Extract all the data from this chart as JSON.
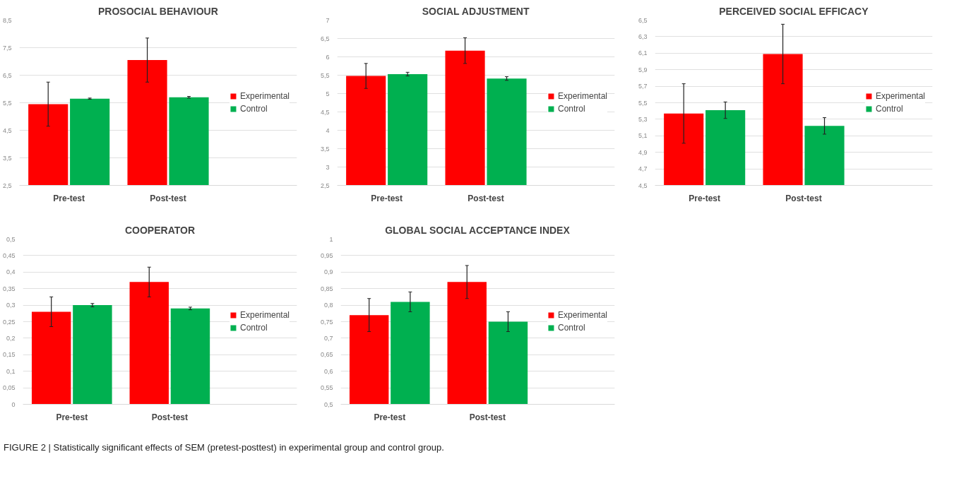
{
  "chart_data": [
    {
      "type": "bar",
      "title": "PROSOCIAL BEHAVIOUR",
      "categories": [
        "Pre-test",
        "Post-test"
      ],
      "series": [
        {
          "name": "Experimental",
          "color": "#ff0000",
          "values": [
            5.45,
            7.05
          ],
          "errors": [
            0.8,
            0.8
          ]
        },
        {
          "name": "Control",
          "color": "#00b050",
          "values": [
            5.65,
            5.7
          ],
          "errors": [
            0.02,
            0.03
          ]
        }
      ],
      "ylim": [
        2.5,
        8.5
      ],
      "yticks": [
        {
          "value": 2.5,
          "label": "2,5"
        },
        {
          "value": 3.5,
          "label": "3,5"
        },
        {
          "value": 4.5,
          "label": "4,5"
        },
        {
          "value": 5.5,
          "label": "5,5"
        },
        {
          "value": 6.5,
          "label": "6,5"
        },
        {
          "value": 7.5,
          "label": "7,5"
        },
        {
          "value": 8.5,
          "label": "8,5"
        }
      ],
      "grid": "y",
      "legend": "right"
    },
    {
      "type": "bar",
      "title": "SOCIAL ADJUSTMENT",
      "categories": [
        "Pre-test",
        "Post-test"
      ],
      "series": [
        {
          "name": "Experimental",
          "color": "#ff0000",
          "values": [
            5.48,
            6.17
          ],
          "errors": [
            0.34,
            0.35
          ]
        },
        {
          "name": "Control",
          "color": "#00b050",
          "values": [
            5.53,
            5.41
          ],
          "errors": [
            0.05,
            0.05
          ]
        }
      ],
      "ylim": [
        2.5,
        7
      ],
      "yticks": [
        {
          "value": 2.5,
          "label": "2,5"
        },
        3,
        {
          "value": 3.5,
          "label": "3,5"
        },
        4,
        {
          "value": 4.5,
          "label": "4,5"
        },
        5,
        {
          "value": 5.5,
          "label": "5,5"
        },
        6,
        {
          "value": 6.5,
          "label": "6,5"
        },
        7
      ],
      "grid": "y",
      "legend": "right"
    },
    {
      "type": "bar",
      "title": "PERCEIVED SOCIAL EFFICACY",
      "categories": [
        "Pre-test",
        "Post-test"
      ],
      "series": [
        {
          "name": "Experimental",
          "color": "#ff0000",
          "values": [
            5.37,
            6.09
          ],
          "errors": [
            0.36,
            0.36
          ]
        },
        {
          "name": "Control",
          "color": "#00b050",
          "values": [
            5.41,
            5.22
          ],
          "errors": [
            0.1,
            0.1
          ]
        }
      ],
      "ylim": [
        4.5,
        6.5
      ],
      "yticks": [
        {
          "value": 4.5,
          "label": "4,5"
        },
        {
          "value": 4.7,
          "label": "4,7"
        },
        {
          "value": 4.9,
          "label": "4,9"
        },
        {
          "value": 5.1,
          "label": "5,1"
        },
        {
          "value": 5.3,
          "label": "5,3"
        },
        {
          "value": 5.5,
          "label": "5,5"
        },
        {
          "value": 5.7,
          "label": "5,7"
        },
        {
          "value": 5.9,
          "label": "5,9"
        },
        {
          "value": 6.1,
          "label": "6,1"
        },
        {
          "value": 6.3,
          "label": "6,3"
        },
        {
          "value": 6.5,
          "label": "6,5"
        }
      ],
      "grid": "y",
      "legend": "right"
    },
    {
      "type": "bar",
      "title": "COOPERATOR",
      "categories": [
        "Pre-test",
        "Post-test"
      ],
      "series": [
        {
          "name": "Experimental",
          "color": "#ff0000",
          "values": [
            0.28,
            0.37
          ],
          "errors": [
            0.045,
            0.045
          ]
        },
        {
          "name": "Control",
          "color": "#00b050",
          "values": [
            0.3,
            0.29
          ],
          "errors": [
            0.005,
            0.004
          ]
        }
      ],
      "ylim": [
        0,
        0.5
      ],
      "yticks": [
        0,
        {
          "value": 0.05,
          "label": "0,05"
        },
        {
          "value": 0.1,
          "label": "0,1"
        },
        {
          "value": 0.15,
          "label": "0,15"
        },
        {
          "value": 0.2,
          "label": "0,2"
        },
        {
          "value": 0.25,
          "label": "0,25"
        },
        {
          "value": 0.3,
          "label": "0,3"
        },
        {
          "value": 0.35,
          "label": "0,35"
        },
        {
          "value": 0.4,
          "label": "0,4"
        },
        {
          "value": 0.45,
          "label": "0,45"
        },
        {
          "value": 0.5,
          "label": "0,5"
        }
      ],
      "grid": "y",
      "legend": "right"
    },
    {
      "type": "bar",
      "title": "GLOBAL SOCIAL ACCEPTANCE INDEX",
      "categories": [
        "Pre-test",
        "Post-test"
      ],
      "series": [
        {
          "name": "Experimental",
          "color": "#ff0000",
          "values": [
            0.77,
            0.87
          ],
          "errors": [
            0.05,
            0.05
          ]
        },
        {
          "name": "Control",
          "color": "#00b050",
          "values": [
            0.81,
            0.75
          ],
          "errors": [
            0.03,
            0.03
          ]
        }
      ],
      "ylim": [
        0.5,
        1
      ],
      "yticks": [
        {
          "value": 0.5,
          "label": "0,5"
        },
        {
          "value": 0.55,
          "label": "0,55"
        },
        {
          "value": 0.6,
          "label": "0,6"
        },
        {
          "value": 0.65,
          "label": "0,65"
        },
        {
          "value": 0.7,
          "label": "0,7"
        },
        {
          "value": 0.75,
          "label": "0,75"
        },
        {
          "value": 0.8,
          "label": "0,8"
        },
        {
          "value": 0.85,
          "label": "0,85"
        },
        {
          "value": 0.9,
          "label": "0,9"
        },
        {
          "value": 0.95,
          "label": "0,95"
        },
        1
      ],
      "grid": "y",
      "legend": "right",
      "annotations": [
        "FIGURE 2 | Statistically significant effects of SEM (pretest-posttest) in experimental group and control group."
      ]
    }
  ]
}
